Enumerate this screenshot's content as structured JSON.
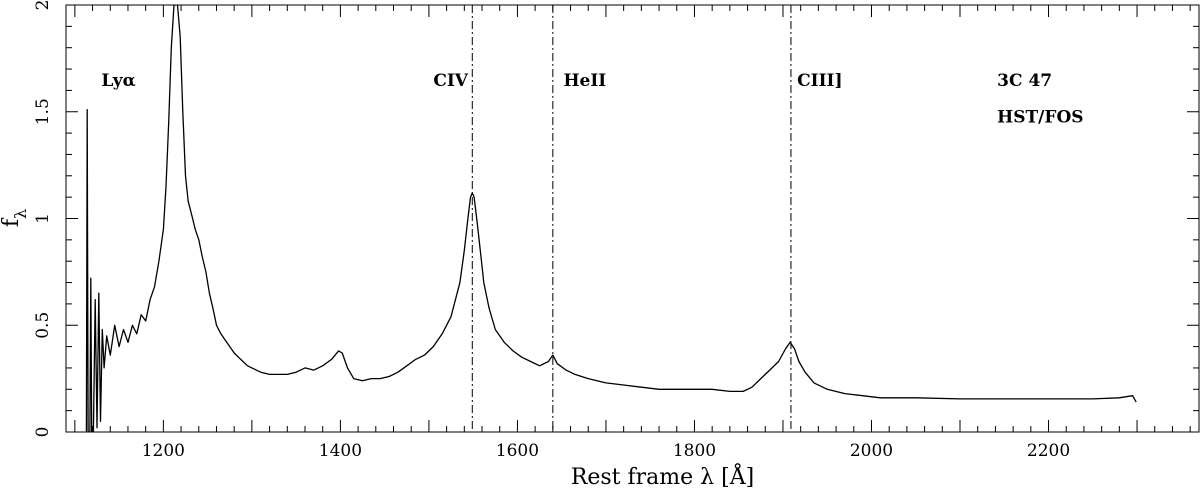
{
  "chart_data": {
    "type": "line",
    "xlabel": "Rest frame λ [Å]",
    "ylabel": "f",
    "ylabel_sub": "λ",
    "xlim": [
      1090,
      2370
    ],
    "ylim": [
      0,
      2
    ],
    "x_ticks": [
      1200,
      1400,
      1600,
      1800,
      2000,
      2200
    ],
    "y_ticks": [
      0,
      0.5,
      1,
      1.5,
      2
    ],
    "y_tick_labels": [
      "0",
      "0.5",
      "1",
      "1.5",
      "2"
    ],
    "grid": false,
    "series": [
      {
        "values": [
          [
            1113,
            0.0
          ],
          [
            1114,
            1.51
          ],
          [
            1115,
            0.0
          ],
          [
            1117,
            0.0
          ],
          [
            1118,
            0.72
          ],
          [
            1119,
            0.0
          ],
          [
            1121,
            0.0
          ],
          [
            1123,
            0.62
          ],
          [
            1125,
            0.02
          ],
          [
            1127,
            0.65
          ],
          [
            1129,
            0.05
          ],
          [
            1131,
            0.48
          ],
          [
            1133,
            0.3
          ],
          [
            1136,
            0.45
          ],
          [
            1140,
            0.36
          ],
          [
            1145,
            0.5
          ],
          [
            1150,
            0.4
          ],
          [
            1155,
            0.48
          ],
          [
            1160,
            0.42
          ],
          [
            1165,
            0.5
          ],
          [
            1170,
            0.46
          ],
          [
            1175,
            0.55
          ],
          [
            1180,
            0.52
          ],
          [
            1185,
            0.62
          ],
          [
            1190,
            0.68
          ],
          [
            1195,
            0.8
          ],
          [
            1200,
            0.95
          ],
          [
            1203,
            1.15
          ],
          [
            1206,
            1.45
          ],
          [
            1209,
            1.8
          ],
          [
            1212,
            2.0
          ],
          [
            1214,
            2.0
          ],
          [
            1216,
            2.0
          ],
          [
            1219,
            1.85
          ],
          [
            1222,
            1.5
          ],
          [
            1225,
            1.2
          ],
          [
            1228,
            1.08
          ],
          [
            1230,
            1.05
          ],
          [
            1233,
            1.0
          ],
          [
            1236,
            0.95
          ],
          [
            1240,
            0.9
          ],
          [
            1244,
            0.82
          ],
          [
            1248,
            0.75
          ],
          [
            1252,
            0.65
          ],
          [
            1256,
            0.58
          ],
          [
            1260,
            0.5
          ],
          [
            1265,
            0.46
          ],
          [
            1270,
            0.43
          ],
          [
            1275,
            0.4
          ],
          [
            1280,
            0.37
          ],
          [
            1285,
            0.35
          ],
          [
            1290,
            0.33
          ],
          [
            1295,
            0.31
          ],
          [
            1300,
            0.3
          ],
          [
            1310,
            0.28
          ],
          [
            1320,
            0.27
          ],
          [
            1330,
            0.27
          ],
          [
            1340,
            0.27
          ],
          [
            1350,
            0.28
          ],
          [
            1360,
            0.3
          ],
          [
            1370,
            0.29
          ],
          [
            1380,
            0.31
          ],
          [
            1390,
            0.34
          ],
          [
            1398,
            0.38
          ],
          [
            1402,
            0.37
          ],
          [
            1408,
            0.3
          ],
          [
            1415,
            0.25
          ],
          [
            1425,
            0.24
          ],
          [
            1435,
            0.25
          ],
          [
            1445,
            0.25
          ],
          [
            1455,
            0.26
          ],
          [
            1465,
            0.28
          ],
          [
            1475,
            0.31
          ],
          [
            1485,
            0.34
          ],
          [
            1495,
            0.36
          ],
          [
            1505,
            0.4
          ],
          [
            1515,
            0.46
          ],
          [
            1525,
            0.54
          ],
          [
            1535,
            0.7
          ],
          [
            1540,
            0.85
          ],
          [
            1544,
            1.0
          ],
          [
            1547,
            1.1
          ],
          [
            1549,
            1.12
          ],
          [
            1551,
            1.1
          ],
          [
            1554,
            1.0
          ],
          [
            1558,
            0.85
          ],
          [
            1562,
            0.7
          ],
          [
            1568,
            0.58
          ],
          [
            1575,
            0.48
          ],
          [
            1585,
            0.42
          ],
          [
            1595,
            0.38
          ],
          [
            1605,
            0.35
          ],
          [
            1615,
            0.33
          ],
          [
            1625,
            0.31
          ],
          [
            1635,
            0.33
          ],
          [
            1640,
            0.36
          ],
          [
            1645,
            0.32
          ],
          [
            1655,
            0.29
          ],
          [
            1665,
            0.27
          ],
          [
            1680,
            0.25
          ],
          [
            1700,
            0.23
          ],
          [
            1720,
            0.22
          ],
          [
            1740,
            0.21
          ],
          [
            1760,
            0.2
          ],
          [
            1780,
            0.2
          ],
          [
            1800,
            0.2
          ],
          [
            1820,
            0.2
          ],
          [
            1840,
            0.19
          ],
          [
            1855,
            0.19
          ],
          [
            1865,
            0.21
          ],
          [
            1875,
            0.25
          ],
          [
            1885,
            0.29
          ],
          [
            1895,
            0.33
          ],
          [
            1903,
            0.39
          ],
          [
            1908,
            0.42
          ],
          [
            1913,
            0.39
          ],
          [
            1918,
            0.33
          ],
          [
            1925,
            0.28
          ],
          [
            1935,
            0.23
          ],
          [
            1950,
            0.2
          ],
          [
            1970,
            0.18
          ],
          [
            1990,
            0.17
          ],
          [
            2010,
            0.16
          ],
          [
            2050,
            0.16
          ],
          [
            2100,
            0.155
          ],
          [
            2150,
            0.155
          ],
          [
            2200,
            0.155
          ],
          [
            2250,
            0.155
          ],
          [
            2280,
            0.16
          ],
          [
            2295,
            0.17
          ],
          [
            2299,
            0.14
          ]
        ]
      }
    ],
    "vlines": [
      1549,
      1640,
      1909
    ],
    "annotations": [
      {
        "text": "Lyα",
        "x": 1130,
        "y": 1.62
      },
      {
        "text": "CIV",
        "x": 1505,
        "y": 1.62
      },
      {
        "text": "HeII",
        "x": 1652,
        "y": 1.62
      },
      {
        "text": "CIII]",
        "x": 1916,
        "y": 1.62
      },
      {
        "text": "3C 47",
        "x": 2142,
        "y": 1.62
      },
      {
        "text": "HST/FOS",
        "x": 2142,
        "y": 1.45
      }
    ]
  }
}
